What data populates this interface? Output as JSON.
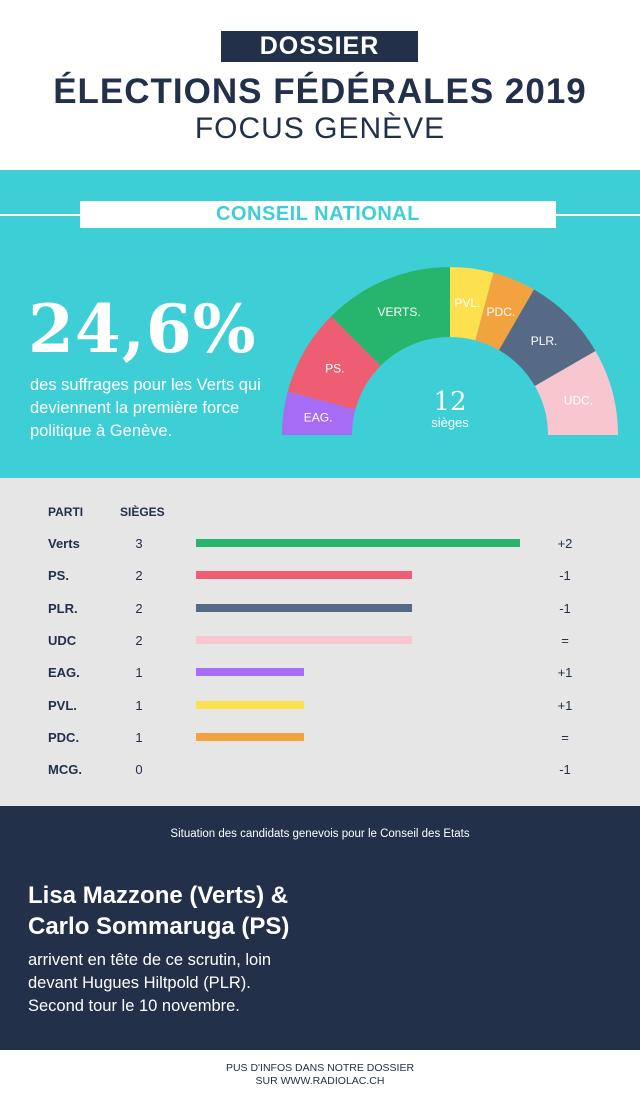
{
  "header": {
    "tag": "DOSSIER",
    "title": "ÉLECTIONS FÉDÉRALES 2019",
    "subtitle": "FOCUS GENÈVE"
  },
  "national": {
    "section_title": "CONSEIL NATIONAL",
    "percent": "24,6%",
    "description": "des suffrages pour les Verts qui deviennent la première force politique à Genève.",
    "seats_total": "12",
    "seats_label": "sièges"
  },
  "chart_data": {
    "type": "pie",
    "title": "CONSEIL NATIONAL",
    "subtype": "half-donut",
    "total_seats": 12,
    "slices": [
      {
        "label": "EAG.",
        "value": 1,
        "color": "#a66cf4"
      },
      {
        "label": "PS.",
        "value": 2,
        "color": "#ee5d72"
      },
      {
        "label": "VERTS.",
        "value": 3,
        "color": "#27b56e"
      },
      {
        "label": "PVL.",
        "value": 1,
        "color": "#fce04e"
      },
      {
        "label": "PDC.",
        "value": 1,
        "color": "#f2a340"
      },
      {
        "label": "PLR.",
        "value": 2,
        "color": "#566a86"
      },
      {
        "label": "UDC.",
        "value": 2,
        "color": "#f7c6cf"
      }
    ]
  },
  "table": {
    "headers": {
      "party": "PARTI",
      "seats": "SIÈGES"
    },
    "max_seats": 3,
    "rows": [
      {
        "party": "Verts",
        "seats": 3,
        "seats_text": "3",
        "change": "+2",
        "color": "#27b56e"
      },
      {
        "party": "PS.",
        "seats": 2,
        "seats_text": "2",
        "change": "-1",
        "color": "#ee5d72"
      },
      {
        "party": "PLR.",
        "seats": 2,
        "seats_text": "2",
        "change": "-1",
        "color": "#566a86"
      },
      {
        "party": "UDC",
        "seats": 2,
        "seats_text": "2",
        "change": "=",
        "color": "#f7c6cf"
      },
      {
        "party": "EAG.",
        "seats": 1,
        "seats_text": "1",
        "change": "+1",
        "color": "#a66cf4"
      },
      {
        "party": "PVL.",
        "seats": 1,
        "seats_text": "1",
        "change": "+1",
        "color": "#fce04e"
      },
      {
        "party": "PDC.",
        "seats": 1,
        "seats_text": "1",
        "change": "=",
        "color": "#f2a340"
      },
      {
        "party": "MCG.",
        "seats": 0,
        "seats_text": "0",
        "change": "-1",
        "color": "#22304a"
      }
    ]
  },
  "etats": {
    "title": "Situation des candidats genevois pour le Conseil des Etats",
    "candidates_line1": "Lisa Mazzone (Verts) &",
    "candidates_line2": "Carlo Sommaruga (PS)",
    "text_line1": "arrivent en tête de ce scrutin, loin",
    "text_line2": "devant Hugues Hiltpold (PLR).",
    "text_line3": "Second tour le 10 novembre."
  },
  "footer": {
    "line1": "PUS D'INFOS DANS NOTRE DOSSIER",
    "line2": "SUR WWW.RADIOLAC.CH"
  },
  "colors": {
    "navy": "#22304a",
    "teal": "#3ecfd6",
    "grey": "#e6e6e6"
  }
}
